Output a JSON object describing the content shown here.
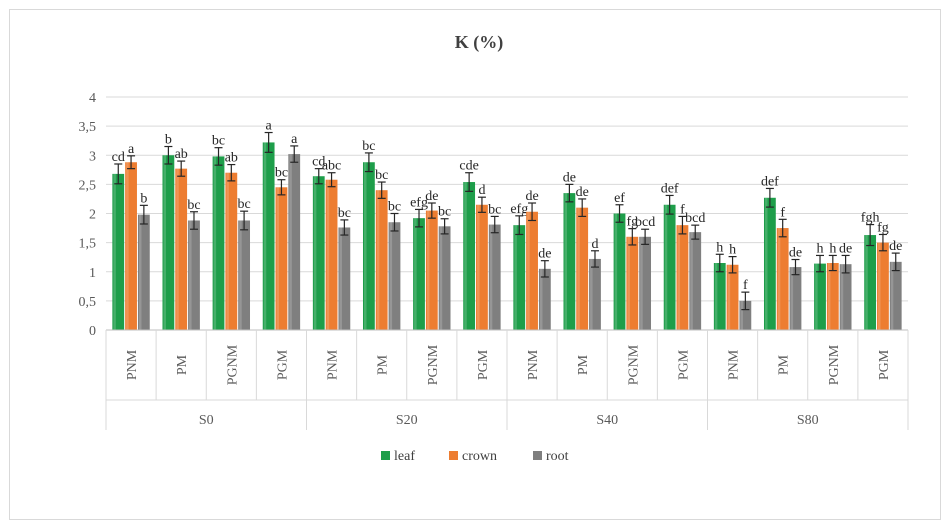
{
  "chart_data": {
    "type": "bar",
    "title": "K (%)",
    "xlabel": "",
    "ylabel": "",
    "ylim": [
      0,
      4
    ],
    "y_ticks": [
      "0",
      "0,5",
      "1",
      "1,5",
      "2",
      "2,5",
      "3",
      "3,5",
      "4"
    ],
    "y_tick_values": [
      0,
      0.5,
      1,
      1.5,
      2,
      2.5,
      3,
      3.5,
      4
    ],
    "grid": true,
    "legend_position": "bottom",
    "groups": [
      "S0",
      "S20",
      "S40",
      "S80"
    ],
    "subcategories": [
      "PNM",
      "PM",
      "PGNM",
      "PGM"
    ],
    "categories": [
      "S0 PNM",
      "S0 PM",
      "S0 PGNM",
      "S0 PGM",
      "S20 PNM",
      "S20 PM",
      "S20 PGNM",
      "S20 PGM",
      "S40 PNM",
      "S40 PM",
      "S40 PGNM",
      "S40 PGM",
      "S80 PNM",
      "S80 PM",
      "S80 PGNM",
      "S80 PGM"
    ],
    "series": [
      {
        "name": "leaf",
        "color": "#1e9e4a",
        "values": [
          2.68,
          3.0,
          2.98,
          3.22,
          2.64,
          2.88,
          1.92,
          2.54,
          1.8,
          2.35,
          2.0,
          2.15,
          1.15,
          2.27,
          1.14,
          1.63
        ],
        "errors": [
          0.17,
          0.15,
          0.15,
          0.17,
          0.13,
          0.16,
          0.15,
          0.16,
          0.16,
          0.15,
          0.15,
          0.16,
          0.15,
          0.16,
          0.14,
          0.18
        ],
        "labels": [
          "cd",
          "b",
          "bc",
          "a",
          "cd",
          "bc",
          "efg",
          "cde",
          "efg",
          "de",
          "ef",
          "def",
          "h",
          "def",
          "h",
          "fgh"
        ]
      },
      {
        "name": "crown",
        "color": "#ed7d31",
        "values": [
          2.88,
          2.77,
          2.7,
          2.45,
          2.58,
          2.4,
          2.05,
          2.15,
          2.03,
          2.1,
          1.6,
          1.8,
          1.12,
          1.75,
          1.15,
          1.5
        ],
        "errors": [
          0.11,
          0.13,
          0.14,
          0.13,
          0.12,
          0.14,
          0.13,
          0.13,
          0.15,
          0.15,
          0.14,
          0.15,
          0.14,
          0.15,
          0.13,
          0.14
        ],
        "labels": [
          "a",
          "ab",
          "ab",
          "bc",
          "abc",
          "bc",
          "de",
          "d",
          "de",
          "de",
          "fg",
          "f",
          "h",
          "f",
          "h",
          "fg"
        ]
      },
      {
        "name": "root",
        "color": "#7f7f7f",
        "values": [
          1.98,
          1.88,
          1.88,
          3.02,
          1.76,
          1.85,
          1.78,
          1.81,
          1.05,
          1.22,
          1.6,
          1.68,
          0.5,
          1.08,
          1.13,
          1.17
        ],
        "errors": [
          0.16,
          0.15,
          0.16,
          0.14,
          0.13,
          0.15,
          0.13,
          0.14,
          0.14,
          0.14,
          0.13,
          0.12,
          0.15,
          0.13,
          0.15,
          0.15
        ],
        "labels": [
          "b",
          "bc",
          "bc",
          "a",
          "bc",
          "bc",
          "bc",
          "bc",
          "de",
          "d",
          "bcd",
          "bcd",
          "f",
          "de",
          "de",
          "de"
        ]
      }
    ]
  }
}
